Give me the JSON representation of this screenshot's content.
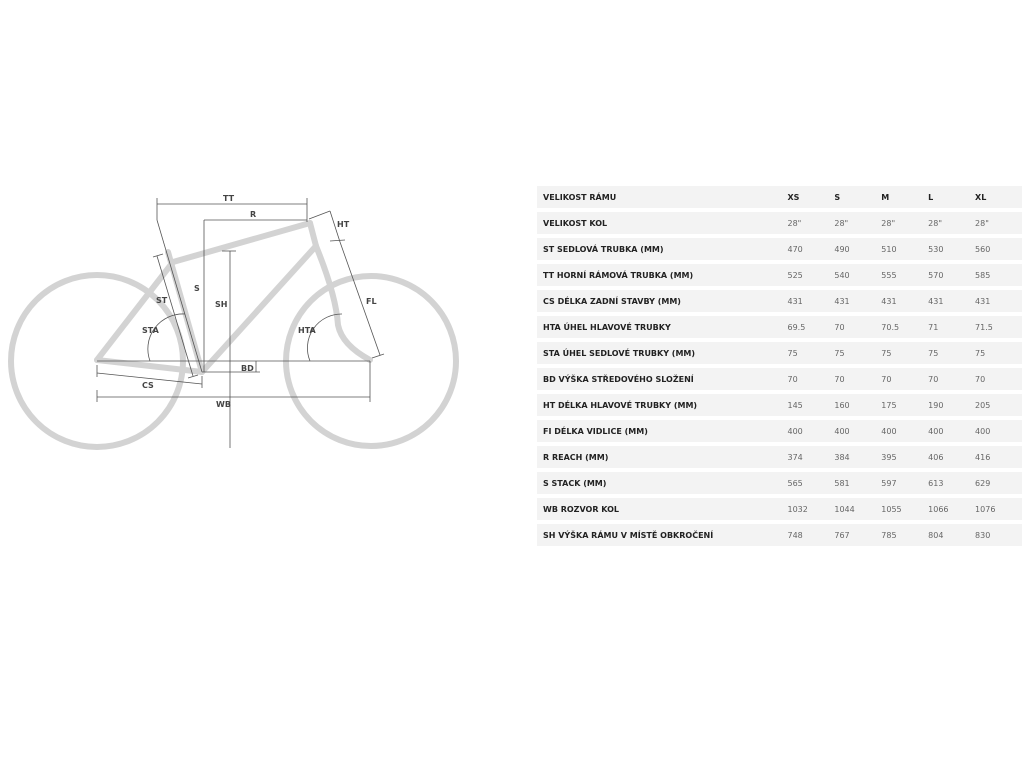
{
  "diagram": {
    "labels": {
      "tt": "TT",
      "r": "R",
      "ht": "HT",
      "s": "S",
      "sh": "SH",
      "st": "ST",
      "fl": "FL",
      "sta": "STA",
      "hta": "HTA",
      "bd": "BD",
      "cs": "CS",
      "wb": "WB"
    },
    "frame_color": "#d3d3d3",
    "line_color": "#555555"
  },
  "table": {
    "header": {
      "label": "VELIKOST RÁMU",
      "sizes": [
        "XS",
        "S",
        "M",
        "L",
        "XL"
      ]
    },
    "rows": [
      {
        "label": "VELIKOST KOL",
        "values": [
          "28\"",
          "28\"",
          "28\"",
          "28\"",
          "28\""
        ]
      },
      {
        "label": "ST SEDLOVÁ TRUBKA (MM)",
        "values": [
          "470",
          "490",
          "510",
          "530",
          "560"
        ]
      },
      {
        "label": "TT HORNÍ RÁMOVÁ TRUBKA (MM)",
        "values": [
          "525",
          "540",
          "555",
          "570",
          "585"
        ]
      },
      {
        "label": "CS DÉLKA ZADNÍ STAVBY (MM)",
        "values": [
          "431",
          "431",
          "431",
          "431",
          "431"
        ]
      },
      {
        "label": "HTA ÚHEL HLAVOVÉ TRUBKY",
        "values": [
          "69.5",
          "70",
          "70.5",
          "71",
          "71.5"
        ]
      },
      {
        "label": "STA ÚHEL SEDLOVÉ TRUBKY (MM)",
        "values": [
          "75",
          "75",
          "75",
          "75",
          "75"
        ]
      },
      {
        "label": "BD VÝŠKA STŘEDOVÉHO SLOŽENÍ",
        "values": [
          "70",
          "70",
          "70",
          "70",
          "70"
        ]
      },
      {
        "label": "HT DÉLKA HLAVOVÉ TRUBKY (MM)",
        "values": [
          "145",
          "160",
          "175",
          "190",
          "205"
        ]
      },
      {
        "label": "FI DÉLKA VIDLICE (MM)",
        "values": [
          "400",
          "400",
          "400",
          "400",
          "400"
        ]
      },
      {
        "label": "R REACH (MM)",
        "values": [
          "374",
          "384",
          "395",
          "406",
          "416"
        ]
      },
      {
        "label": "S STACK (MM)",
        "values": [
          "565",
          "581",
          "597",
          "613",
          "629"
        ]
      },
      {
        "label": "WB ROZVOR KOL",
        "values": [
          "1032",
          "1044",
          "1055",
          "1066",
          "1076"
        ]
      },
      {
        "label": "SH VÝŠKA RÁMU V MÍSTĚ OBKROČENÍ",
        "values": [
          "748",
          "767",
          "785",
          "804",
          "830"
        ]
      }
    ]
  }
}
